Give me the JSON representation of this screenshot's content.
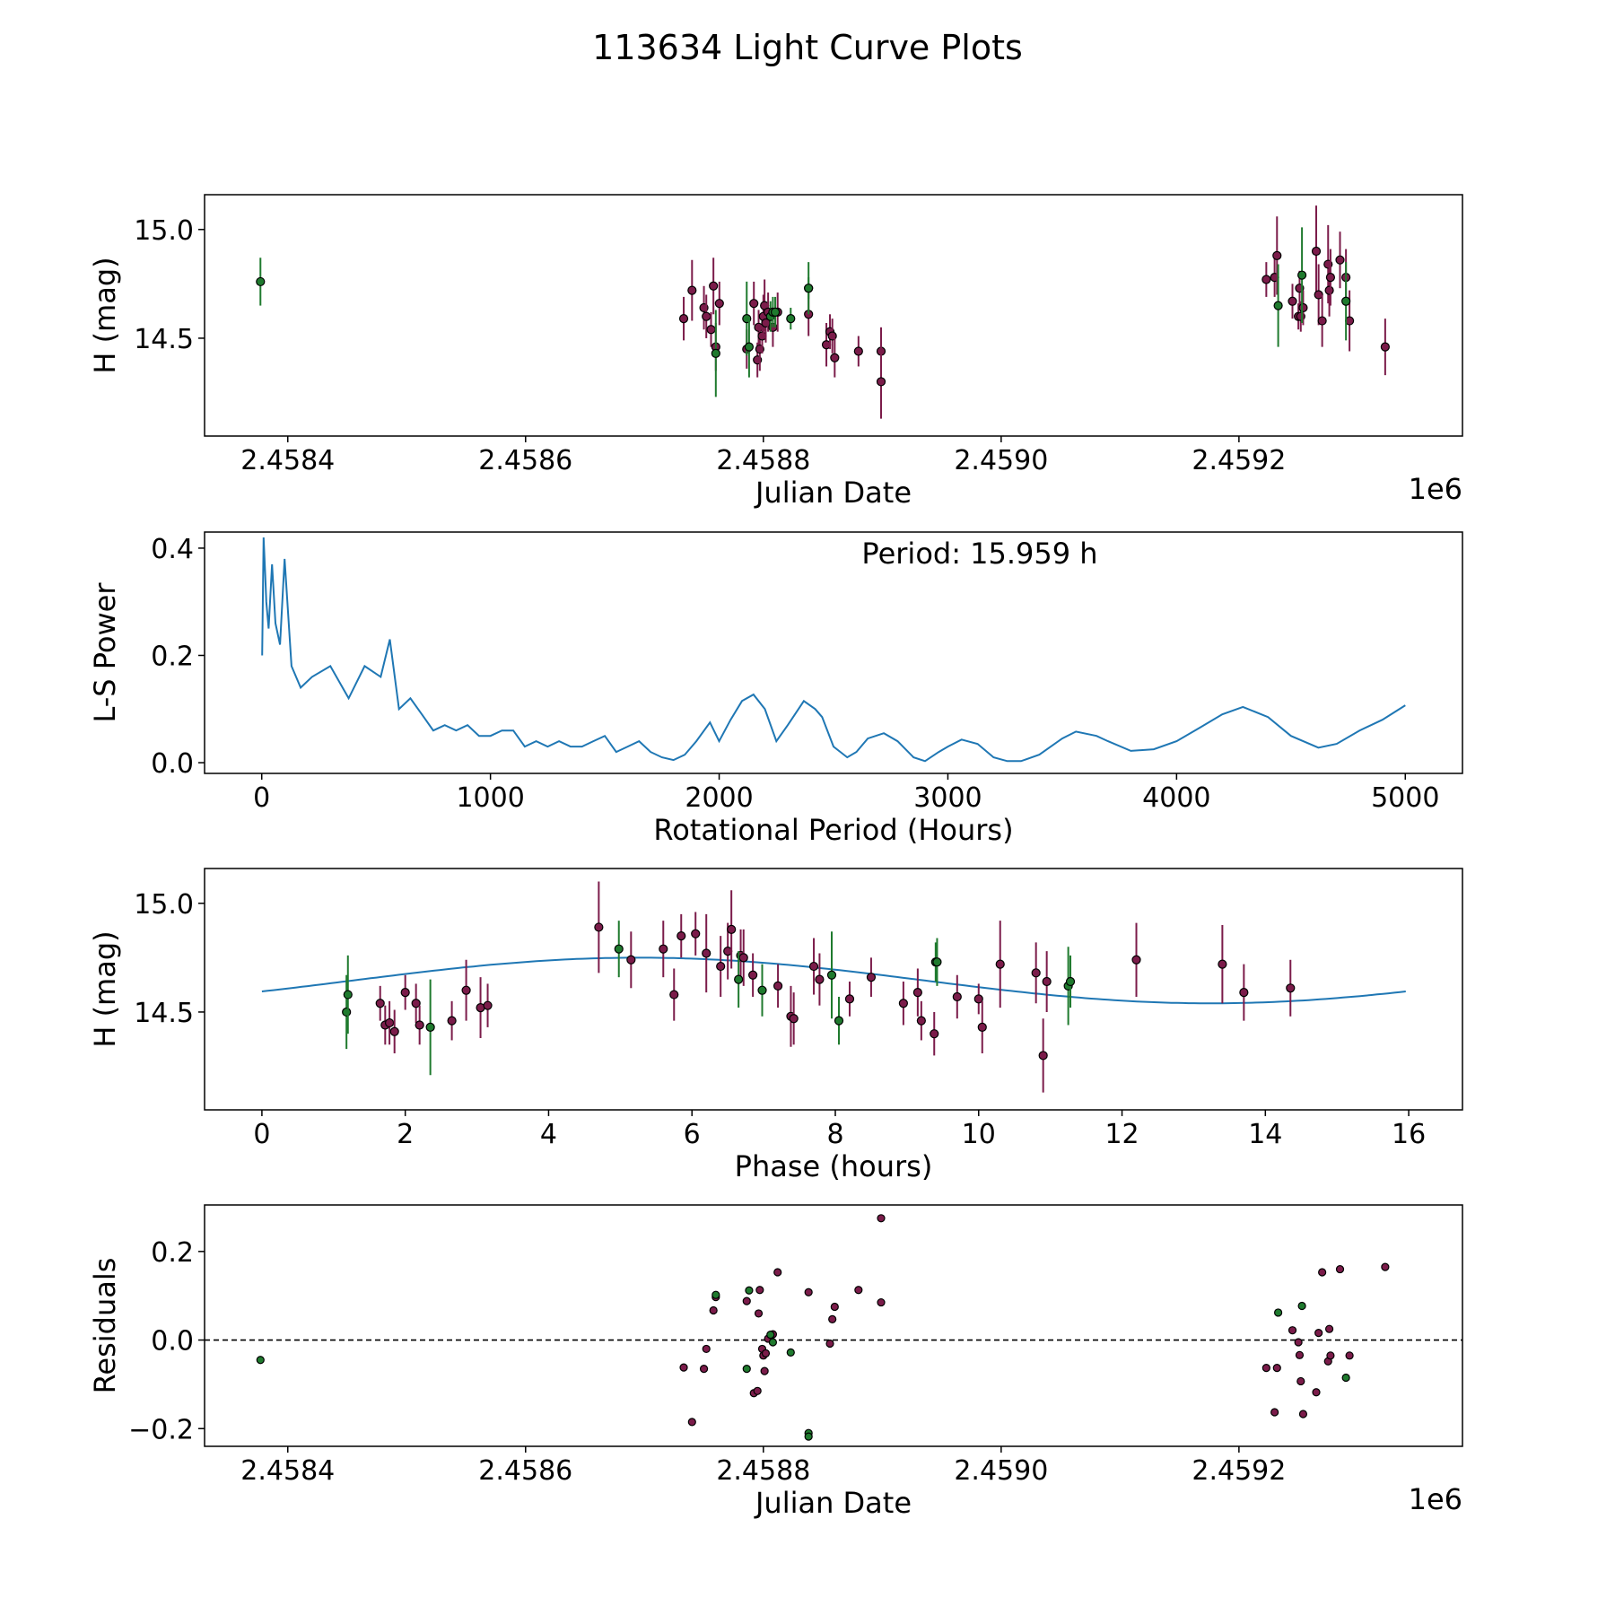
{
  "figure_title": "113634 Light Curve Plots",
  "colors": {
    "magenta": "#7b1c4a",
    "green": "#1f7a2e",
    "blue": "#1f77b4",
    "edge": "#000000"
  },
  "chart_data": [
    {
      "type": "scatter",
      "id": "lightcurve",
      "xlabel": "Julian Date",
      "ylabel": "H (mag)",
      "x_offset_label": "1e6",
      "xlim": [
        2458330,
        2459388
      ],
      "ylim": [
        14.05,
        15.16
      ],
      "y_inverted": true,
      "xticks": [
        2458400,
        2458600,
        2458800,
        2459000,
        2459200
      ],
      "xtick_labels": [
        "2.4584",
        "2.4586",
        "2.4588",
        "2.4590",
        "2.4592"
      ],
      "yticks": [
        15.0,
        14.5
      ],
      "ytick_labels": [
        "15.0",
        "14.5"
      ],
      "series": [
        {
          "name": "magenta",
          "color_key": "magenta",
          "x": [
            2458733,
            2458740,
            2458750,
            2458752,
            2458756,
            2458758,
            2458760,
            2458763,
            2458786,
            2458792,
            2458795,
            2458796,
            2458797,
            2458799,
            2458800,
            2458801,
            2458802,
            2458804,
            2458808,
            2458812,
            2458838,
            2458853,
            2458856,
            2458858,
            2458860,
            2458880,
            2458899,
            2458899,
            2459223,
            2459230,
            2459232,
            2459245,
            2459250,
            2459251,
            2459252,
            2459254,
            2459265,
            2459267,
            2459270,
            2459275,
            2459276,
            2459277,
            2459285,
            2459290,
            2459293,
            2459323
          ],
          "y": [
            14.59,
            14.72,
            14.64,
            14.6,
            14.54,
            14.74,
            14.46,
            14.66,
            14.45,
            14.66,
            14.4,
            14.55,
            14.45,
            14.51,
            14.6,
            14.65,
            14.57,
            14.62,
            14.55,
            14.62,
            14.61,
            14.47,
            14.53,
            14.51,
            14.41,
            14.44,
            14.44,
            14.3,
            14.77,
            14.78,
            14.88,
            14.67,
            14.6,
            14.73,
            14.6,
            14.64,
            14.9,
            14.7,
            14.58,
            14.84,
            14.72,
            14.78,
            14.86,
            14.78,
            14.58,
            14.46
          ],
          "err": [
            0.1,
            0.14,
            0.1,
            0.1,
            0.08,
            0.13,
            0.11,
            0.1,
            0.09,
            0.1,
            0.08,
            0.08,
            0.1,
            0.08,
            0.1,
            0.12,
            0.09,
            0.09,
            0.09,
            0.09,
            0.1,
            0.1,
            0.08,
            0.08,
            0.09,
            0.07,
            0.11,
            0.17,
            0.08,
            0.09,
            0.18,
            0.08,
            0.06,
            0.08,
            0.07,
            0.08,
            0.21,
            0.14,
            0.12,
            0.18,
            0.12,
            0.13,
            0.13,
            0.13,
            0.14,
            0.13
          ]
        },
        {
          "name": "green",
          "color_key": "green",
          "x": [
            2458377,
            2458760,
            2458786,
            2458788,
            2458806,
            2458808,
            2458810,
            2458823,
            2458838,
            2458838,
            2459233,
            2459253,
            2459290
          ],
          "y": [
            14.76,
            14.43,
            14.59,
            14.46,
            14.6,
            14.62,
            14.62,
            14.59,
            14.73,
            14.73,
            14.65,
            14.79,
            14.67
          ],
          "err": [
            0.11,
            0.2,
            0.17,
            0.14,
            0.07,
            0.07,
            0.07,
            0.05,
            0.05,
            0.12,
            0.19,
            0.22,
            0.18
          ]
        }
      ]
    },
    {
      "type": "line",
      "id": "periodogram",
      "xlabel": "Rotational Period (Hours)",
      "ylabel": "L-S Power",
      "annotation": "Period: 15.959 h",
      "xlim": [
        -250,
        5250
      ],
      "ylim": [
        -0.02,
        0.43
      ],
      "xticks": [
        0,
        1000,
        2000,
        3000,
        4000,
        5000
      ],
      "xtick_labels": [
        "0",
        "1000",
        "2000",
        "3000",
        "4000",
        "5000"
      ],
      "yticks": [
        0.0,
        0.2,
        0.4
      ],
      "ytick_labels": [
        "0.0",
        "0.2",
        "0.4"
      ],
      "series": [
        {
          "name": "power",
          "color_key": "blue",
          "x": [
            2,
            8,
            15,
            20,
            30,
            45,
            60,
            80,
            100,
            130,
            170,
            220,
            300,
            380,
            450,
            520,
            560,
            600,
            650,
            700,
            750,
            800,
            850,
            900,
            950,
            1000,
            1050,
            1100,
            1150,
            1200,
            1250,
            1300,
            1350,
            1400,
            1450,
            1500,
            1550,
            1600,
            1650,
            1700,
            1750,
            1800,
            1850,
            1900,
            1960,
            2000,
            2050,
            2100,
            2150,
            2200,
            2250,
            2300,
            2370,
            2420,
            2450,
            2500,
            2560,
            2600,
            2650,
            2720,
            2780,
            2850,
            2900,
            2960,
            3000,
            3060,
            3130,
            3200,
            3260,
            3320,
            3400,
            3500,
            3560,
            3650,
            3700,
            3800,
            3900,
            4000,
            4100,
            4200,
            4290,
            4400,
            4500,
            4620,
            4700,
            4800,
            4900,
            5000
          ],
          "y": [
            0.2,
            0.42,
            0.35,
            0.3,
            0.25,
            0.37,
            0.26,
            0.22,
            0.38,
            0.18,
            0.14,
            0.16,
            0.18,
            0.12,
            0.18,
            0.16,
            0.23,
            0.1,
            0.12,
            0.09,
            0.06,
            0.07,
            0.06,
            0.07,
            0.05,
            0.05,
            0.06,
            0.06,
            0.03,
            0.04,
            0.03,
            0.04,
            0.03,
            0.03,
            0.04,
            0.05,
            0.02,
            0.03,
            0.04,
            0.02,
            0.01,
            0.005,
            0.015,
            0.04,
            0.075,
            0.04,
            0.08,
            0.115,
            0.127,
            0.1,
            0.04,
            0.07,
            0.115,
            0.1,
            0.085,
            0.03,
            0.01,
            0.02,
            0.045,
            0.055,
            0.04,
            0.01,
            0.003,
            0.02,
            0.03,
            0.043,
            0.035,
            0.01,
            0.003,
            0.003,
            0.015,
            0.045,
            0.058,
            0.05,
            0.04,
            0.022,
            0.025,
            0.04,
            0.065,
            0.09,
            0.104,
            0.085,
            0.05,
            0.028,
            0.035,
            0.06,
            0.08,
            0.107
          ]
        }
      ]
    },
    {
      "type": "scatter",
      "id": "phased",
      "xlabel": "Phase (hours)",
      "ylabel": "H (mag)",
      "xlim": [
        -0.8,
        16.75
      ],
      "ylim": [
        14.05,
        15.16
      ],
      "y_inverted": true,
      "xticks": [
        0,
        2,
        4,
        6,
        8,
        10,
        12,
        14,
        16
      ],
      "xtick_labels": [
        "0",
        "2",
        "4",
        "6",
        "8",
        "10",
        "12",
        "14",
        "16"
      ],
      "yticks": [
        15.0,
        14.5
      ],
      "ytick_labels": [
        "15.0",
        "14.5"
      ],
      "model": {
        "period_hours": 15.959,
        "mean": 14.645,
        "amplitude": 0.105,
        "phase_rad": -0.5
      },
      "series": [
        {
          "name": "magenta",
          "color_key": "magenta",
          "x": [
            1.65,
            1.72,
            1.78,
            1.85,
            2.0,
            2.15,
            2.2,
            2.65,
            2.85,
            3.05,
            3.15,
            4.7,
            5.15,
            5.6,
            5.75,
            5.85,
            6.05,
            6.2,
            6.4,
            6.5,
            6.55,
            6.68,
            6.72,
            6.85,
            7.2,
            7.38,
            7.42,
            7.7,
            7.78,
            8.2,
            8.5,
            8.95,
            9.15,
            9.2,
            9.38,
            9.7,
            10.0,
            10.05,
            10.3,
            10.8,
            10.9,
            10.95,
            12.2,
            13.4,
            13.7,
            14.35
          ],
          "y": [
            14.54,
            14.44,
            14.45,
            14.41,
            14.59,
            14.54,
            14.44,
            14.46,
            14.6,
            14.52,
            14.53,
            14.89,
            14.74,
            14.79,
            14.58,
            14.85,
            14.86,
            14.77,
            14.71,
            14.78,
            14.88,
            14.76,
            14.75,
            14.67,
            14.62,
            14.48,
            14.47,
            14.71,
            14.65,
            14.56,
            14.66,
            14.54,
            14.59,
            14.46,
            14.4,
            14.57,
            14.56,
            14.43,
            14.72,
            14.68,
            14.3,
            14.64,
            14.74,
            14.72,
            14.59,
            14.61
          ],
          "err": [
            0.08,
            0.09,
            0.1,
            0.1,
            0.08,
            0.09,
            0.09,
            0.09,
            0.14,
            0.14,
            0.1,
            0.21,
            0.13,
            0.13,
            0.12,
            0.1,
            0.1,
            0.18,
            0.14,
            0.13,
            0.18,
            0.12,
            0.13,
            0.1,
            0.1,
            0.14,
            0.12,
            0.13,
            0.12,
            0.08,
            0.09,
            0.1,
            0.11,
            0.09,
            0.1,
            0.1,
            0.07,
            0.12,
            0.2,
            0.14,
            0.17,
            0.14,
            0.17,
            0.18,
            0.13,
            0.13
          ]
        },
        {
          "name": "green",
          "color_key": "green",
          "x": [
            1.18,
            1.2,
            2.35,
            4.98,
            6.65,
            6.98,
            7.95,
            8.05,
            9.4,
            9.42,
            11.25,
            11.28
          ],
          "y": [
            14.5,
            14.58,
            14.43,
            14.79,
            14.65,
            14.6,
            14.67,
            14.46,
            14.73,
            14.73,
            14.62,
            14.64
          ],
          "err": [
            0.17,
            0.18,
            0.22,
            0.13,
            0.13,
            0.12,
            0.2,
            0.11,
            0.09,
            0.11,
            0.18,
            0.12
          ]
        }
      ]
    },
    {
      "type": "scatter",
      "id": "residuals",
      "xlabel": "Julian Date",
      "ylabel": "Residuals",
      "x_offset_label": "1e6",
      "xlim": [
        2458330,
        2459388
      ],
      "ylim": [
        -0.24,
        0.305
      ],
      "xticks": [
        2458400,
        2458600,
        2458800,
        2459000,
        2459200
      ],
      "xtick_labels": [
        "2.4584",
        "2.4586",
        "2.4588",
        "2.4590",
        "2.4592"
      ],
      "yticks": [
        0.2,
        0.0,
        -0.2
      ],
      "ytick_labels": [
        "0.2",
        "0.0",
        "−0.2"
      ],
      "zero_line": 0.0,
      "series": [
        {
          "name": "magenta",
          "color_key": "magenta",
          "x": [
            2458733,
            2458740,
            2458750,
            2458752,
            2458758,
            2458760,
            2458786,
            2458792,
            2458795,
            2458796,
            2458797,
            2458799,
            2458800,
            2458801,
            2458802,
            2458804,
            2458808,
            2458812,
            2458838,
            2458856,
            2458858,
            2458860,
            2458880,
            2458899,
            2458899,
            2459223,
            2459230,
            2459232,
            2459245,
            2459250,
            2459251,
            2459252,
            2459254,
            2459265,
            2459267,
            2459270,
            2459275,
            2459276,
            2459277,
            2459285,
            2459293,
            2459323
          ],
          "y": [
            -0.062,
            -0.185,
            -0.065,
            -0.02,
            0.067,
            0.097,
            0.088,
            -0.12,
            -0.115,
            0.06,
            0.113,
            -0.02,
            -0.035,
            -0.07,
            -0.03,
            0.003,
            0.013,
            0.153,
            0.108,
            -0.008,
            0.047,
            0.075,
            0.113,
            0.275,
            0.085,
            -0.063,
            -0.163,
            -0.063,
            0.022,
            -0.005,
            -0.034,
            -0.093,
            -0.167,
            -0.118,
            0.016,
            0.153,
            -0.048,
            0.025,
            -0.035,
            0.16,
            -0.035,
            0.165
          ],
          "r": 4
        },
        {
          "name": "green",
          "color_key": "green",
          "x": [
            2458377,
            2458760,
            2458786,
            2458788,
            2458806,
            2458808,
            2458823,
            2458838,
            2458838,
            2459233,
            2459253,
            2459290
          ],
          "y": [
            -0.045,
            0.102,
            -0.065,
            0.112,
            0.012,
            -0.005,
            -0.028,
            -0.21,
            -0.218,
            0.062,
            0.077,
            -0.085
          ],
          "r": 4
        }
      ]
    }
  ]
}
